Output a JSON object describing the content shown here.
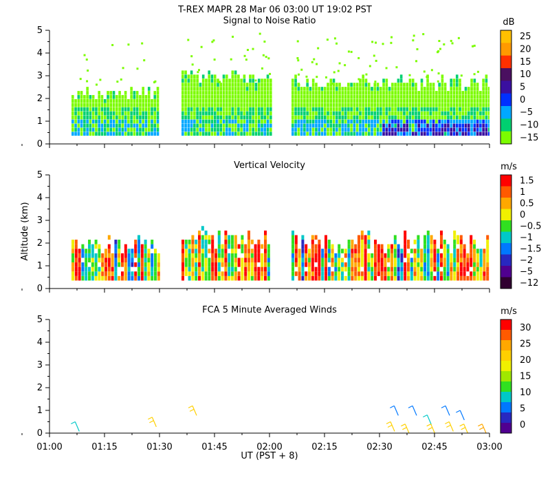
{
  "figure": {
    "title": "T-REX   MAPR 28 Mar 06   03:00 UT   19:02   PST",
    "ylabel": "Altitude (km)",
    "xlabel": "UT  (PST + 8)",
    "x_ticks": [
      "01:00",
      "01:15",
      "01:30",
      "01:45",
      "02:00",
      "02:15",
      "02:30",
      "02:45",
      "03:00"
    ]
  },
  "chart_data": [
    {
      "type": "heatmap",
      "title": "Signal to Noise Ratio",
      "xlabel": "UT  (PST + 8)",
      "ylabel": "Altitude (km)",
      "x_range_minutes": [
        0,
        120
      ],
      "ylim": [
        0,
        5
      ],
      "y_ticks": [
        "0",
        "1",
        "2",
        "3",
        "4",
        "5"
      ],
      "colorbar": {
        "unit": "dB",
        "labels": [
          "25",
          "20",
          "15",
          "10",
          "5",
          "0",
          "−5",
          "−10",
          "−15"
        ],
        "colors": [
          "#ffc000",
          "#ff9a00",
          "#ff3000",
          "#4a1060",
          "#3a10a0",
          "#0030ff",
          "#00a8ff",
          "#00d070",
          "#7cfc00"
        ]
      },
      "data_gaps_minutes": [
        [
          30,
          36
        ],
        [
          60,
          66
        ]
      ],
      "regions": [
        {
          "x": [
            6,
            30
          ],
          "top_km": 2.4,
          "dominant": "−10 to −15"
        },
        {
          "x": [
            36,
            60
          ],
          "top_km": 3.1,
          "dominant": "−10 to −15"
        },
        {
          "x": [
            66,
            120
          ],
          "top_km": 2.9,
          "dominant": "−10 to −15, low layer −5 to 0"
        }
      ]
    },
    {
      "type": "heatmap",
      "title": "Vertical Velocity",
      "xlabel": "UT  (PST + 8)",
      "ylabel": "Altitude (km)",
      "x_range_minutes": [
        0,
        120
      ],
      "ylim": [
        0,
        5
      ],
      "y_ticks": [
        "0",
        "1",
        "2",
        "3",
        "4",
        "5"
      ],
      "colorbar": {
        "unit": "m/s",
        "labels": [
          "1.5",
          "1",
          "0.5",
          "0",
          "−0.5",
          "−1",
          "−1.5",
          "−2",
          "−5",
          "−12"
        ],
        "colors": [
          "#ff0000",
          "#ff5a00",
          "#ffa800",
          "#f0f000",
          "#30e020",
          "#00c8c8",
          "#0078ff",
          "#2828c0",
          "#500090",
          "#300030"
        ]
      },
      "data_gaps_minutes": [
        [
          30,
          36
        ],
        [
          60,
          66
        ]
      ],
      "regions": [
        {
          "x": [
            6,
            30
          ],
          "top_km": 2.3
        },
        {
          "x": [
            36,
            60
          ],
          "top_km": 2.7
        },
        {
          "x": [
            66,
            120
          ],
          "top_km": 2.4
        }
      ]
    },
    {
      "type": "scatter",
      "title": "FCA 5 Minute Averaged Winds",
      "xlabel": "UT  (PST + 8)",
      "ylabel": "Altitude (km)",
      "x_range_minutes": [
        0,
        120
      ],
      "ylim": [
        0,
        5
      ],
      "y_ticks": [
        "0",
        "1",
        "2",
        "3",
        "4",
        "5"
      ],
      "colorbar": {
        "unit": "m/s",
        "labels": [
          "30",
          "25",
          "20",
          "15",
          "10",
          "5",
          "0"
        ],
        "colors": [
          "#ff0000",
          "#ff5a00",
          "#ffa800",
          "#ffd000",
          "#f0f000",
          "#a0e800",
          "#30e020",
          "#00c8c8",
          "#0078ff",
          "#2828c0",
          "#500090"
        ]
      },
      "barbs": [
        {
          "t": 7,
          "alt": 0.5,
          "speed": 10
        },
        {
          "t": 28,
          "alt": 0.7,
          "speed": 20
        },
        {
          "t": 39,
          "alt": 1.2,
          "speed": 20
        },
        {
          "t": 93,
          "alt": 0.5,
          "speed": 20
        },
        {
          "t": 94,
          "alt": 1.2,
          "speed": 5
        },
        {
          "t": 97,
          "alt": 0.4,
          "speed": 22
        },
        {
          "t": 99,
          "alt": 1.2,
          "speed": 5
        },
        {
          "t": 103,
          "alt": 0.8,
          "speed": 10
        },
        {
          "t": 104,
          "alt": 0.4,
          "speed": 22
        },
        {
          "t": 108,
          "alt": 1.2,
          "speed": 5
        },
        {
          "t": 109,
          "alt": 0.5,
          "speed": 22
        },
        {
          "t": 112,
          "alt": 1.0,
          "speed": 5
        },
        {
          "t": 113,
          "alt": 0.4,
          "speed": 22
        },
        {
          "t": 118,
          "alt": 0.4,
          "speed": 25
        }
      ]
    }
  ]
}
